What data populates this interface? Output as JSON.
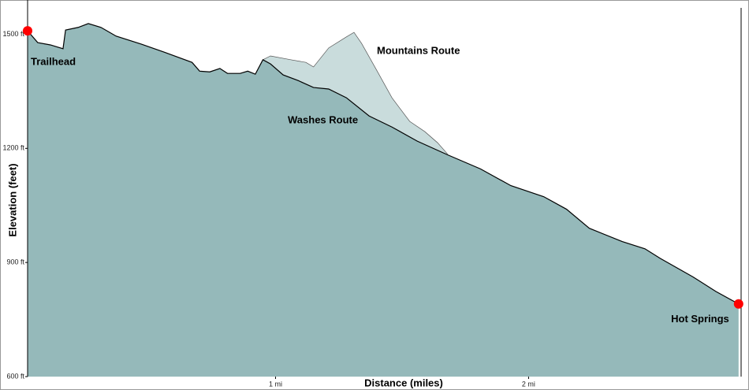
{
  "chart_data": {
    "type": "area",
    "xlabel": "Distance (miles)",
    "ylabel": "Elevation (feet)",
    "xlim": [
      0.02,
      2.84
    ],
    "ylim": [
      600,
      1590
    ],
    "xticks": [
      {
        "value": 1,
        "label": "1 mi"
      },
      {
        "value": 2,
        "label": "2 mi"
      }
    ],
    "yticks": [
      {
        "value": 600,
        "label": "600 ft"
      },
      {
        "value": 900,
        "label": "900 ft"
      },
      {
        "value": 1200,
        "label": "1200 ft"
      },
      {
        "value": 1500,
        "label": "1500 ft"
      }
    ],
    "series": [
      {
        "name": "Mountains Route",
        "color": "#c9dcdc",
        "x": [
          0.95,
          0.98,
          1.06,
          1.12,
          1.15,
          1.21,
          1.28,
          1.31,
          1.34,
          1.4,
          1.46,
          1.53,
          1.59,
          1.64,
          1.68
        ],
        "values": [
          1433,
          1443,
          1433,
          1426,
          1414,
          1464,
          1493,
          1505,
          1476,
          1405,
          1333,
          1271,
          1244,
          1215,
          1185
        ]
      },
      {
        "name": "Washes Route",
        "color": "#95b9ba",
        "x": [
          0.02,
          0.06,
          0.11,
          0.16,
          0.17,
          0.22,
          0.26,
          0.31,
          0.37,
          0.47,
          0.56,
          0.67,
          0.7,
          0.74,
          0.78,
          0.81,
          0.86,
          0.89,
          0.92,
          0.95,
          0.98,
          1.03,
          1.09,
          1.15,
          1.21,
          1.28,
          1.37,
          1.46,
          1.56,
          1.68,
          1.81,
          1.93,
          2.06,
          2.15,
          2.24,
          2.37,
          2.46,
          2.52,
          2.65,
          2.74,
          2.83
        ],
        "values": [
          1509,
          1478,
          1472,
          1462,
          1511,
          1518,
          1528,
          1518,
          1495,
          1474,
          1453,
          1426,
          1403,
          1401,
          1410,
          1397,
          1397,
          1403,
          1395,
          1433,
          1422,
          1393,
          1378,
          1360,
          1356,
          1333,
          1285,
          1256,
          1219,
          1183,
          1146,
          1102,
          1073,
          1040,
          990,
          955,
          936,
          911,
          862,
          824,
          791
        ]
      }
    ],
    "markers": [
      {
        "label": "Trailhead",
        "x": 0.02,
        "y": 1509,
        "color": "#ff0000"
      },
      {
        "label": "Hot Springs",
        "x": 2.83,
        "y": 791,
        "color": "#ff0000"
      }
    ]
  }
}
